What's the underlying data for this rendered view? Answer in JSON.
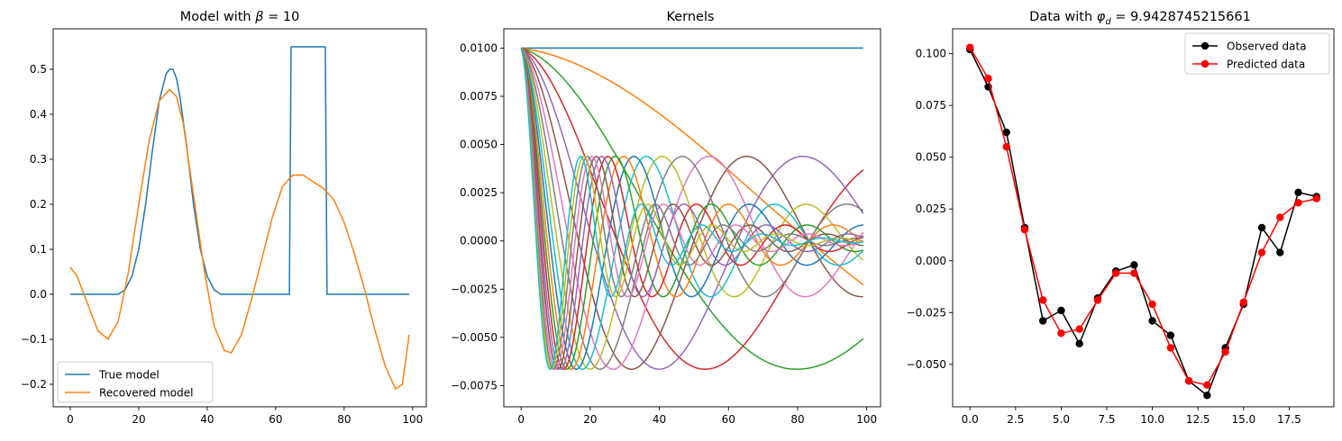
{
  "figure": {
    "panels": [
      {
        "title_prefix": "Model with ",
        "title_symbol": "β",
        "title_suffix": " = 10"
      },
      {
        "title": "Kernels"
      },
      {
        "title_prefix": "Data with ",
        "title_symbol": "φ",
        "title_sub": "d",
        "title_suffix": " = 9.9428745215661"
      }
    ]
  },
  "chart_data": [
    {
      "type": "line",
      "title": "Model with β = 10",
      "xlim": [
        -5,
        104
      ],
      "ylim": [
        -0.25,
        0.59
      ],
      "xticks": [
        0,
        20,
        40,
        60,
        80,
        100
      ],
      "xtick_labels": [
        "0",
        "20",
        "40",
        "60",
        "80",
        "100"
      ],
      "yticks": [
        -0.2,
        -0.1,
        0.0,
        0.1,
        0.2,
        0.3,
        0.4,
        0.5
      ],
      "ytick_labels": [
        "−0.2",
        "−0.1",
        "0.0",
        "0.1",
        "0.2",
        "0.3",
        "0.4",
        "0.5"
      ],
      "legend": "lower-left",
      "series": [
        {
          "name": "True model",
          "color": "#1f77b4",
          "x": [
            0,
            14,
            16,
            18,
            20,
            22,
            24,
            26,
            28,
            29,
            30,
            31,
            32,
            34,
            36,
            38,
            40,
            42,
            44,
            64,
            64.5,
            74.5,
            75,
            99
          ],
          "y": [
            0,
            0.0,
            0.01,
            0.04,
            0.1,
            0.2,
            0.32,
            0.43,
            0.49,
            0.5,
            0.5,
            0.48,
            0.44,
            0.33,
            0.2,
            0.1,
            0.04,
            0.01,
            0.0,
            0.0,
            0.55,
            0.55,
            0.0,
            0.0
          ]
        },
        {
          "name": "Recovered model",
          "color": "#ff7f0e",
          "x": [
            0,
            2,
            5,
            8,
            11,
            14,
            17,
            20,
            23,
            26,
            29,
            31,
            33,
            36,
            39,
            42,
            45,
            47,
            50,
            53,
            56,
            59,
            62,
            65,
            68,
            71,
            74,
            77,
            80,
            83,
            86,
            89,
            92,
            95,
            97,
            99
          ],
          "y": [
            0.06,
            0.04,
            -0.02,
            -0.08,
            -0.1,
            -0.06,
            0.05,
            0.2,
            0.34,
            0.43,
            0.455,
            0.44,
            0.38,
            0.22,
            0.06,
            -0.07,
            -0.125,
            -0.13,
            -0.09,
            -0.01,
            0.08,
            0.17,
            0.24,
            0.265,
            0.265,
            0.25,
            0.235,
            0.21,
            0.16,
            0.09,
            0.01,
            -0.08,
            -0.16,
            -0.21,
            -0.2,
            -0.09
          ]
        }
      ]
    },
    {
      "type": "line",
      "title": "Kernels",
      "xlim": [
        -5,
        104
      ],
      "ylim": [
        -0.0086,
        0.011
      ],
      "xticks": [
        0,
        20,
        40,
        60,
        80,
        100
      ],
      "xtick_labels": [
        "0",
        "20",
        "40",
        "60",
        "80",
        "100"
      ],
      "yticks": [
        -0.0075,
        -0.005,
        -0.0025,
        0.0,
        0.0025,
        0.005,
        0.0075,
        0.01
      ],
      "ytick_labels": [
        "−0.0075",
        "−0.0050",
        "−0.0025",
        "0.0000",
        "0.0025",
        "0.0050",
        "0.0075",
        "0.0100"
      ],
      "kernel_count": 20,
      "kernel_x_max": 99,
      "kernel_form": "y = 0.01 * exp(-p*x/100) * cos(2*pi*q*x/100)",
      "series": [
        {
          "p": 0.0,
          "q": 0.0,
          "color": "#1f77b4"
        },
        {
          "p": 0.25,
          "q": 0.3,
          "color": "#ff7f0e"
        },
        {
          "p": 0.5,
          "q": 0.6,
          "color": "#2ca02c"
        },
        {
          "p": 0.75,
          "q": 0.9,
          "color": "#d62728"
        },
        {
          "p": 1.0,
          "q": 1.2,
          "color": "#9467bd"
        },
        {
          "p": 1.25,
          "q": 1.5,
          "color": "#8c564b"
        },
        {
          "p": 1.5,
          "q": 1.8,
          "color": "#e377c2"
        },
        {
          "p": 1.75,
          "q": 2.1,
          "color": "#7f7f7f"
        },
        {
          "p": 2.0,
          "q": 2.4,
          "color": "#bcbd22"
        },
        {
          "p": 2.25,
          "q": 2.7,
          "color": "#17becf"
        },
        {
          "p": 2.5,
          "q": 3.0,
          "color": "#1f77b4"
        },
        {
          "p": 2.75,
          "q": 3.3,
          "color": "#ff7f0e"
        },
        {
          "p": 3.0,
          "q": 3.6,
          "color": "#2ca02c"
        },
        {
          "p": 3.25,
          "q": 3.9,
          "color": "#d62728"
        },
        {
          "p": 3.5,
          "q": 4.2,
          "color": "#9467bd"
        },
        {
          "p": 3.75,
          "q": 4.5,
          "color": "#8c564b"
        },
        {
          "p": 4.0,
          "q": 4.8,
          "color": "#e377c2"
        },
        {
          "p": 4.25,
          "q": 5.1,
          "color": "#7f7f7f"
        },
        {
          "p": 4.5,
          "q": 5.4,
          "color": "#bcbd22"
        },
        {
          "p": 4.75,
          "q": 5.7,
          "color": "#17becf"
        }
      ]
    },
    {
      "type": "line",
      "title": "Data with φd = 9.9428745215661",
      "xlim": [
        -0.95,
        19.95
      ],
      "ylim": [
        -0.0705,
        0.112
      ],
      "xticks": [
        0.0,
        2.5,
        5.0,
        7.5,
        10.0,
        12.5,
        15.0,
        17.5
      ],
      "xtick_labels": [
        "0.0",
        "2.5",
        "5.0",
        "7.5",
        "10.0",
        "12.5",
        "15.0",
        "17.5"
      ],
      "yticks": [
        -0.05,
        -0.025,
        0.0,
        0.025,
        0.05,
        0.075,
        0.1
      ],
      "ytick_labels": [
        "−0.050",
        "−0.025",
        "0.000",
        "0.025",
        "0.050",
        "0.075",
        "0.100"
      ],
      "legend": "top-right",
      "series": [
        {
          "name": "Observed data",
          "color": "#000000",
          "x": [
            0,
            1,
            2,
            3,
            4,
            5,
            6,
            7,
            8,
            9,
            10,
            11,
            12,
            13,
            14,
            15,
            16,
            17,
            18,
            19
          ],
          "y": [
            0.102,
            0.084,
            0.062,
            0.016,
            -0.029,
            -0.024,
            -0.04,
            -0.018,
            -0.005,
            -0.002,
            -0.029,
            -0.036,
            -0.058,
            -0.065,
            -0.042,
            -0.021,
            0.016,
            0.004,
            0.033,
            0.031
          ]
        },
        {
          "name": "Predicted data",
          "color": "#ff0000",
          "x": [
            0,
            1,
            2,
            3,
            4,
            5,
            6,
            7,
            8,
            9,
            10,
            11,
            12,
            13,
            14,
            15,
            16,
            17,
            18,
            19
          ],
          "y": [
            0.103,
            0.088,
            0.055,
            0.015,
            -0.019,
            -0.035,
            -0.033,
            -0.019,
            -0.006,
            -0.006,
            -0.021,
            -0.042,
            -0.058,
            -0.06,
            -0.044,
            -0.02,
            0.004,
            0.021,
            0.028,
            0.03
          ]
        }
      ]
    }
  ]
}
